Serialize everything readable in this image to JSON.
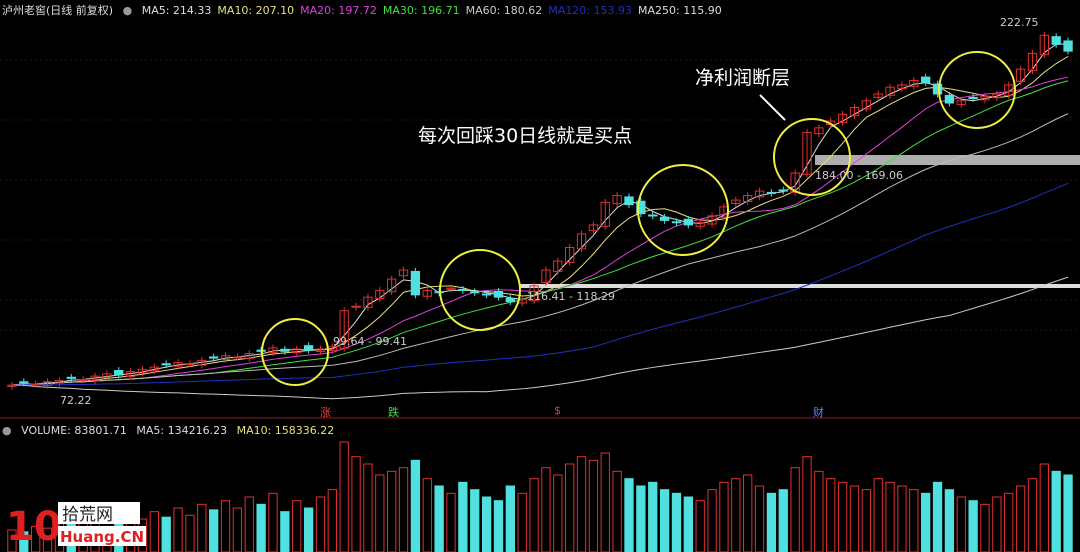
{
  "header": {
    "title": "泸州老窖(日线 前复权)",
    "ma": [
      {
        "label": "MA5: 214.33",
        "color": "#dddddd"
      },
      {
        "label": "MA10: 207.10",
        "color": "#e8e07a"
      },
      {
        "label": "MA20: 197.72",
        "color": "#e040e0"
      },
      {
        "label": "MA30: 196.71",
        "color": "#40e040"
      },
      {
        "label": "MA60: 180.62",
        "color": "#cccccc"
      },
      {
        "label": "MA120: 153.93",
        "color": "#2030c0"
      },
      {
        "label": "MA250: 115.90",
        "color": "#dddddd"
      }
    ]
  },
  "volume_header": {
    "volume": "VOLUME: 83801.71",
    "ma5": "MA5: 134216.23",
    "ma10": "MA10: 158336.22"
  },
  "annotations": {
    "main": "每次回踩30日线就是买点",
    "gap": "净利润断层",
    "high": "222.75",
    "low": "72.22",
    "bands": [
      "99.64 - 99.41",
      "116.41 - 118.29",
      "184.00 - 169.06"
    ]
  },
  "events": [
    {
      "text": "涨",
      "color": "#e04040"
    },
    {
      "text": "跌",
      "color": "#40e040"
    },
    {
      "text": "$",
      "color": "#e04040"
    },
    {
      "text": "财",
      "color": "#6080ff"
    }
  ],
  "logo": {
    "text": "10 拾荒网 Huang.CN"
  },
  "colors": {
    "up": "#e03030",
    "down": "#50e0e0",
    "bg": "#000000"
  },
  "chart_data": {
    "type": "candlestick",
    "ylim": [
      60,
      235
    ],
    "close": [
      71,
      72,
      71.5,
      72.5,
      73,
      74,
      73.5,
      75,
      76,
      75.5,
      77,
      78,
      79,
      80,
      81,
      80.5,
      82,
      83,
      84,
      83.5,
      85,
      86,
      87.5,
      86,
      87,
      86.5,
      87,
      88,
      104,
      106,
      110,
      113,
      118,
      122,
      111,
      113,
      112,
      114,
      113,
      112,
      111,
      110,
      108,
      109,
      115,
      122,
      126,
      132,
      138,
      142,
      152,
      155,
      151,
      147,
      146,
      144,
      143,
      142,
      143,
      146,
      150,
      153,
      155,
      157,
      156,
      157,
      165,
      183,
      185,
      188,
      191,
      194,
      197,
      200,
      203,
      204,
      206,
      205,
      200,
      196,
      197,
      198,
      199,
      200,
      204,
      211,
      218,
      226,
      222,
      219
    ],
    "volume": [
      60,
      55,
      70,
      65,
      80,
      75,
      90,
      85,
      70,
      95,
      100,
      90,
      110,
      95,
      120,
      100,
      130,
      115,
      140,
      120,
      150,
      130,
      160,
      110,
      140,
      120,
      150,
      170,
      300,
      260,
      240,
      210,
      220,
      230,
      250,
      200,
      180,
      160,
      190,
      170,
      150,
      140,
      180,
      160,
      200,
      230,
      210,
      240,
      260,
      250,
      270,
      220,
      200,
      180,
      190,
      170,
      160,
      150,
      140,
      170,
      190,
      200,
      210,
      180,
      160,
      170,
      230,
      260,
      220,
      200,
      190,
      180,
      170,
      200,
      190,
      180,
      170,
      160,
      190,
      170,
      150,
      140,
      130,
      150,
      160,
      180,
      200,
      240,
      220,
      210
    ],
    "moving_averages": [
      5,
      10,
      20,
      30,
      60,
      120,
      250
    ]
  }
}
